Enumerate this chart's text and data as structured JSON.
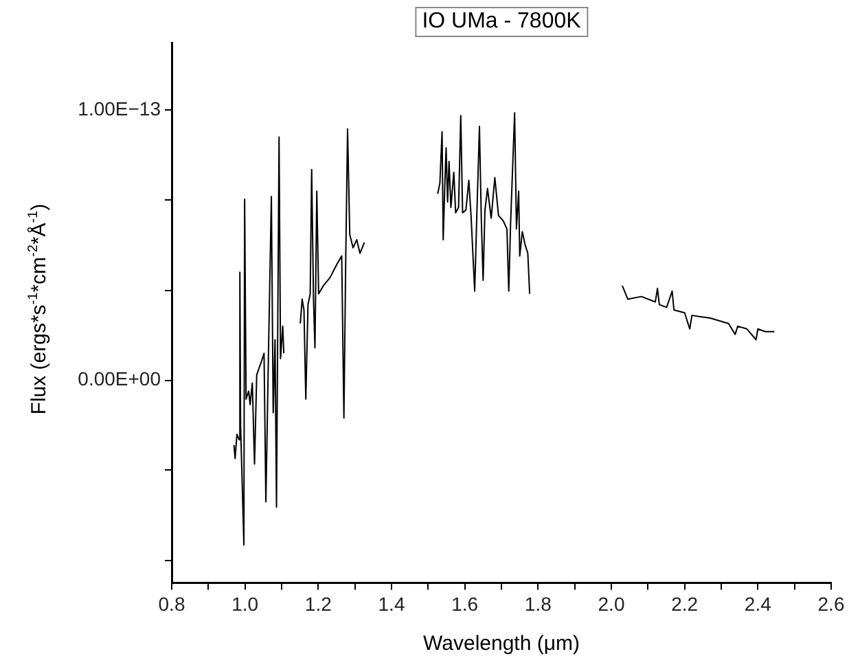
{
  "chart_data": {
    "type": "line",
    "title": "IO UMa - 7800K",
    "xlabel": "Wavelength (μm)",
    "ylabel": "Flux (ergs*s$^{-1}$*cm$^{-2}$*Å$^{-1}$)",
    "marker": "none",
    "line_style": "solid",
    "xlim": [
      0.8,
      2.6
    ],
    "xticks": [
      0.8,
      {
        "value": 0.9,
        "label": null
      },
      {
        "value": 1,
        "label": "1.0"
      },
      {
        "value": 1.1,
        "label": null
      },
      1.2,
      {
        "value": 1.3,
        "label": null
      },
      1.4,
      {
        "value": 1.5,
        "label": null
      },
      1.6,
      {
        "value": 1.7,
        "label": null
      },
      1.8,
      {
        "value": 1.9,
        "label": null
      },
      {
        "value": 2,
        "label": "2.0"
      },
      {
        "value": 2.1,
        "label": null
      },
      2.2,
      {
        "value": 2.3,
        "label": null
      },
      2.4,
      {
        "value": 2.5,
        "label": null
      },
      2.6
    ],
    "ylim": [
      -7.5e-14,
      1.25e-13
    ],
    "yticks": [
      {
        "value": -6.67e-14,
        "label": null
      },
      {
        "value": -3.33e-14,
        "label": null
      },
      {
        "value": 0,
        "label": "0.00E+00"
      },
      {
        "value": 3.33e-14,
        "label": null
      },
      {
        "value": 6.67e-14,
        "label": null
      },
      {
        "value": 1e-13,
        "label": "1.00E−13"
      }
    ],
    "series": [
      {
        "color": "#000000",
        "x": [
          0.97,
          0.973,
          0.978,
          0.984,
          0.986,
          0.988,
          0.997,
          0.999,
          1.003,
          1.01,
          1.014,
          1.02,
          1.026,
          1.032,
          1.045,
          1.052,
          1.057,
          1.064,
          1.072,
          1.077,
          1.082,
          1.086,
          1.093,
          1.097,
          1.103,
          1.106,
          1.13,
          1.151,
          1.156,
          1.161,
          1.166,
          1.172,
          1.178,
          1.182,
          1.187,
          1.191,
          1.196,
          1.201,
          1.214,
          1.232,
          1.251,
          1.264,
          1.27,
          1.275,
          1.28,
          1.286,
          1.295,
          1.305,
          1.314,
          1.326,
          1.42,
          1.526,
          1.532,
          1.538,
          1.541,
          1.545,
          1.549,
          1.553,
          1.557,
          1.562,
          1.57,
          1.575,
          1.583,
          1.589,
          1.594,
          1.603,
          1.611,
          1.617,
          1.627,
          1.633,
          1.64,
          1.645,
          1.65,
          1.655,
          1.662,
          1.672,
          1.682,
          1.692,
          1.705,
          1.715,
          1.72,
          1.725,
          1.736,
          1.741,
          1.747,
          1.75,
          1.757,
          1.765,
          1.772,
          1.777,
          1.9,
          2.03,
          2.045,
          2.082,
          2.12,
          2.126,
          2.131,
          2.151,
          2.166,
          2.171,
          2.2,
          2.214,
          2.22,
          2.27,
          2.32,
          2.338,
          2.345,
          2.37,
          2.395,
          2.4,
          2.42,
          2.445
        ],
        "values": [
          -2.4e-14,
          -2.9e-14,
          -2e-14,
          -2.2e-14,
          4e-14,
          -1.7e-14,
          -6.1e-14,
          6.7e-14,
          -7e-15,
          -4e-15,
          -9e-15,
          -1e-15,
          -3.1e-14,
          2e-15,
          7e-15,
          1e-14,
          -4.5e-14,
          9e-15,
          6.8e-14,
          -1.2e-14,
          1.5e-14,
          -4.7e-14,
          9e-14,
          8e-15,
          2e-14,
          1e-14,
          null,
          2.1e-14,
          3e-14,
          2.6e-14,
          -7e-15,
          2.8e-14,
          3.2e-14,
          7.8e-14,
          3e-14,
          1.2e-14,
          7e-14,
          3.2e-14,
          3.5e-14,
          3.8e-14,
          4.3e-14,
          4.6e-14,
          -1.4e-14,
          4.5e-14,
          9.3e-14,
          5.4e-14,
          4.9e-14,
          5.2e-14,
          4.7e-14,
          5.1e-14,
          null,
          6.9e-14,
          7.3e-14,
          9.2e-14,
          5.2e-14,
          7e-14,
          8.6e-14,
          6.6e-14,
          8.1e-14,
          6.4e-14,
          7.7e-14,
          6.2e-14,
          6.4e-14,
          9.8e-14,
          6.2e-14,
          6.3e-14,
          7.4e-14,
          6.1e-14,
          3.3e-14,
          6.2e-14,
          9.4e-14,
          6e-14,
          3.7e-14,
          6.3e-14,
          7.1e-14,
          6e-14,
          7.5e-14,
          6.1e-14,
          5.9e-14,
          5.6e-14,
          3.3e-14,
          5.8e-14,
          9.9e-14,
          5.6e-14,
          7e-14,
          4.6e-14,
          5.5e-14,
          5e-14,
          4.7e-14,
          3.2e-14,
          null,
          3.5e-14,
          3e-14,
          3.1e-14,
          2.9e-14,
          3.4e-14,
          2.8e-14,
          2.7e-14,
          3.3e-14,
          2.6e-14,
          2.5e-14,
          1.9e-14,
          2.4e-14,
          2.3e-14,
          2.1e-14,
          1.7e-14,
          2e-14,
          1.9e-14,
          1.5e-14,
          1.9e-14,
          1.8e-14,
          1.8e-14
        ]
      }
    ]
  }
}
